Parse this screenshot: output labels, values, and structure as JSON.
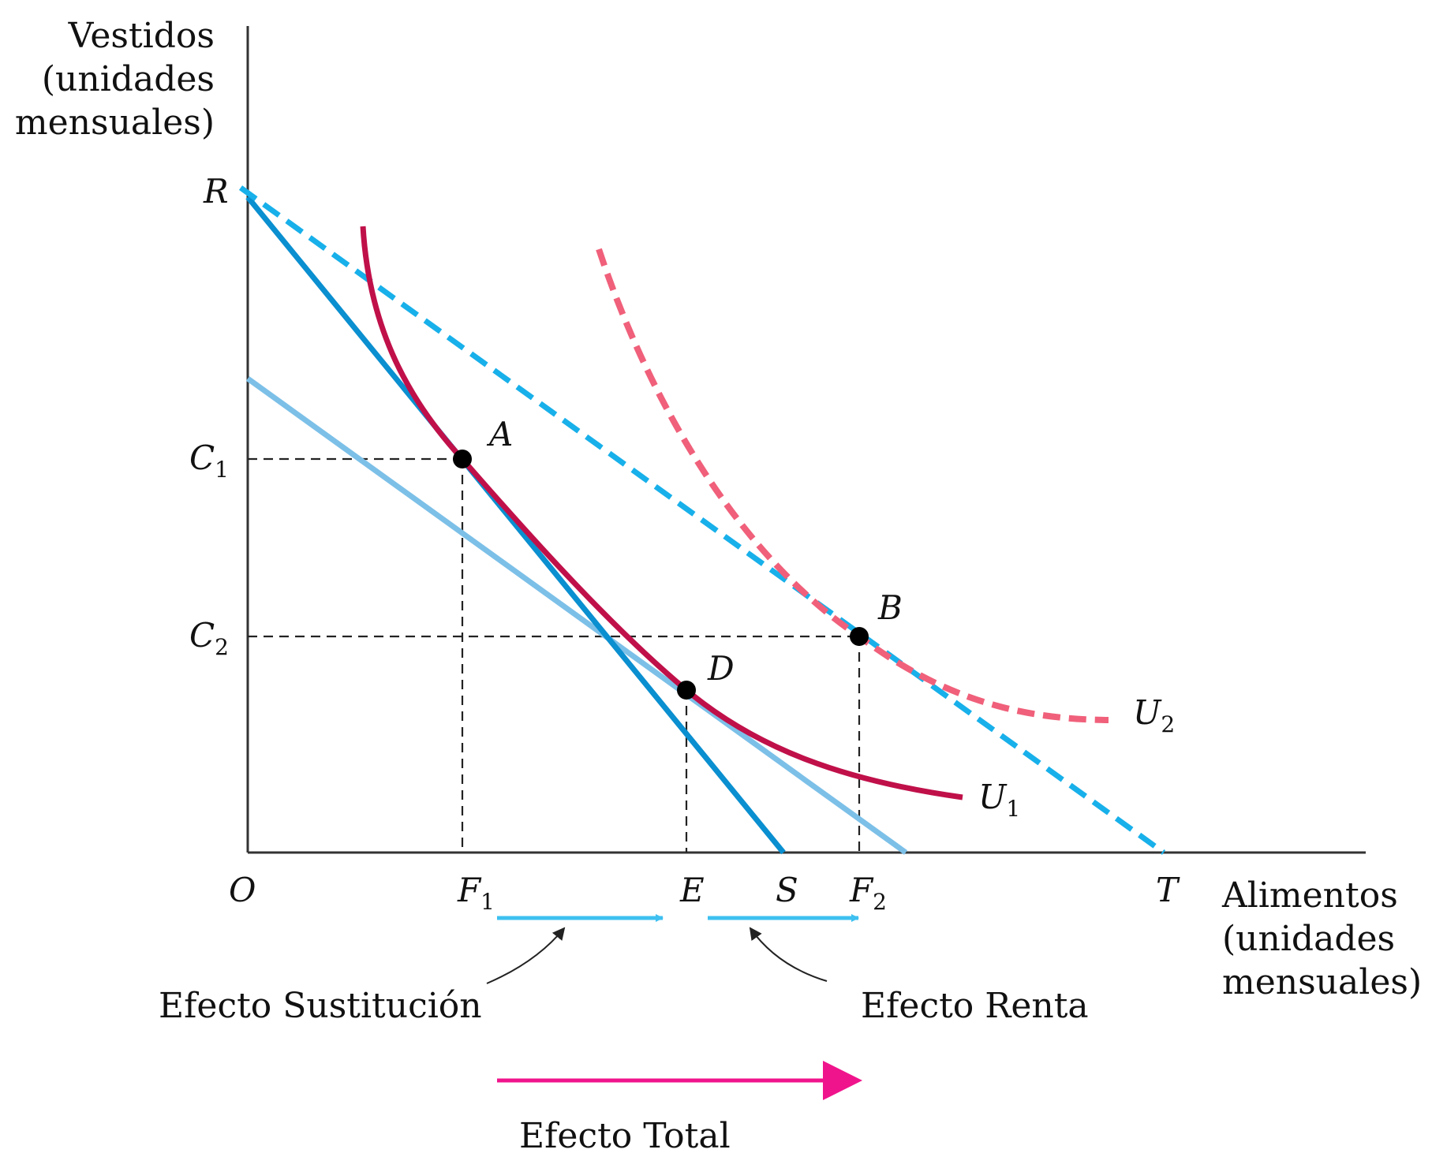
{
  "axes": {
    "y_label": [
      "Vestidos",
      "(unidades",
      "mensuales)"
    ],
    "x_label": [
      "Alimentos",
      "(unidades",
      "mensuales)"
    ]
  },
  "points": {
    "origin": "O",
    "R": "R",
    "S": "S",
    "T": "T",
    "A": "A",
    "B": "B",
    "D": "D",
    "E": "E"
  },
  "ticks": {
    "C1": {
      "main": "C",
      "sub": "1"
    },
    "C2": {
      "main": "C",
      "sub": "2"
    },
    "F1": {
      "main": "F",
      "sub": "1"
    },
    "F2": {
      "main": "F",
      "sub": "2"
    }
  },
  "curves": {
    "U1": {
      "main": "U",
      "sub": "1"
    },
    "U2": {
      "main": "U",
      "sub": "2"
    }
  },
  "effects": {
    "substitution": "Efecto Sustitución",
    "income": "Efecto Renta",
    "total": "Efecto Total"
  },
  "colors": {
    "budget_RS": "#0a8fd0",
    "budget_parallel": "#7cc0e8",
    "budget_RT": "#18b0ea",
    "U1": "#c0104a",
    "U2": "#f0607a",
    "effect_arrows": "#3ec0f0",
    "total_arrow": "#f0148c"
  }
}
